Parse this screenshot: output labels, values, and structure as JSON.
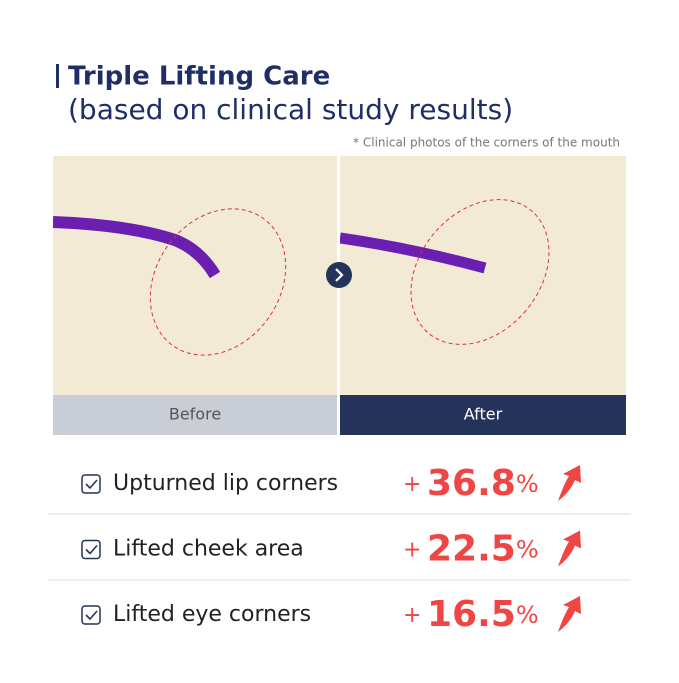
{
  "header": {
    "title": "Triple Lifting Care",
    "subtitle": "(based on clinical study results)",
    "note": "* Clinical photos of the corners of the mouth"
  },
  "photos": {
    "before": "Before",
    "after": "After"
  },
  "results": [
    {
      "label": "Upturned lip corners",
      "sign": "+",
      "value": "36.8",
      "unit": "%"
    },
    {
      "label": "Lifted cheek area",
      "sign": "+",
      "value": "22.5",
      "unit": "%"
    },
    {
      "label": "Lifted eye corners",
      "sign": "+",
      "value": "16.5",
      "unit": "%"
    }
  ]
}
